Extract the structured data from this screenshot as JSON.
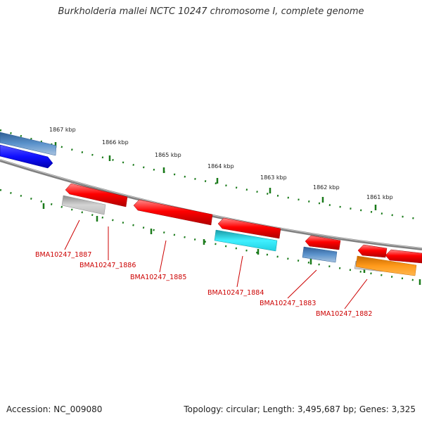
{
  "title": "Burkholderia mallei NCTC 10247 chromosome I, complete genome",
  "footer": {
    "accession": "Accession: NC_009080",
    "topology": "Topology: circular; Length: 3,495,687 bp; Genes: 3,325"
  },
  "scale_ticks": [
    "1867 kbp",
    "1866 kbp",
    "1865 kbp",
    "1864 kbp",
    "1863 kbp",
    "1862 kbp",
    "1861 kbp"
  ],
  "genes": [
    {
      "id": "BMA10247_1887",
      "color": "#ff0000"
    },
    {
      "id": "BMA10247_1886",
      "color": "#c0c0c0"
    },
    {
      "id": "BMA10247_1885",
      "color": "#ff0000"
    },
    {
      "id": "BMA10247_1884",
      "color": "#ff0000"
    },
    {
      "id": "BMA10247_1883",
      "color": "#ff0000"
    },
    {
      "id": "BMA10247_1882",
      "color": "#ff0000"
    }
  ],
  "colors": {
    "backbone": "#888888",
    "scale_dots": "#1a7a1a",
    "label": "#cc0000",
    "feature_red": "#ff0000",
    "feature_gray": "#c0c0c0",
    "feature_cyan": "#22e0ee",
    "feature_steelblue": "#4f86c0",
    "feature_blue": "#1a1aff",
    "feature_orange": "#ff9a1a"
  }
}
